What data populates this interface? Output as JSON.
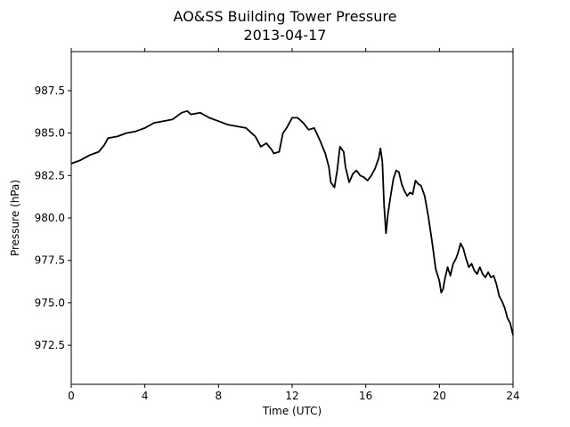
{
  "chart_data": {
    "type": "line",
    "title": "AO&SS Building Tower Pressure",
    "subtitle": "2013-04-17",
    "xlabel": "Time (UTC)",
    "ylabel": "Pressure (hPa)",
    "xlim": [
      0,
      24
    ],
    "ylim": [
      970.2,
      989.8
    ],
    "xticks": [
      0,
      4,
      8,
      12,
      16,
      20,
      24
    ],
    "yticks": [
      972.5,
      975.0,
      977.5,
      980.0,
      982.5,
      985.0,
      987.5
    ],
    "xtick_labels": [
      "0",
      "4",
      "8",
      "12",
      "16",
      "20",
      "24"
    ],
    "ytick_labels": [
      "972.5",
      "975.0",
      "977.5",
      "980.0",
      "982.5",
      "985.0",
      "987.5"
    ],
    "grid": false,
    "line_color": "#000000",
    "series": [
      {
        "x": [
          0.0,
          0.5,
          1.0,
          1.5,
          1.8,
          2.0,
          2.5,
          3.0,
          3.5,
          4.0,
          4.5,
          5.0,
          5.5,
          6.0,
          6.3,
          6.5,
          7.0,
          7.5,
          8.0,
          8.5,
          9.0,
          9.5,
          10.0,
          10.3,
          10.6,
          10.9,
          11.0,
          11.3,
          11.5,
          11.7,
          12.0,
          12.3,
          12.6,
          12.9,
          13.2,
          13.5,
          13.8,
          14.0,
          14.1,
          14.3,
          14.45,
          14.6,
          14.8,
          14.9,
          15.1,
          15.3,
          15.5,
          15.7,
          15.9,
          16.1,
          16.3,
          16.5,
          16.7,
          16.8,
          16.9,
          17.0,
          17.1,
          17.2,
          17.35,
          17.5,
          17.65,
          17.8,
          17.95,
          18.1,
          18.25,
          18.4,
          18.55,
          18.7,
          18.85,
          19.0,
          19.2,
          19.4,
          19.6,
          19.8,
          20.0,
          20.1,
          20.2,
          20.3,
          20.45,
          20.6,
          20.75,
          20.9,
          21.0,
          21.15,
          21.3,
          21.45,
          21.6,
          21.75,
          21.9,
          22.05,
          22.2,
          22.35,
          22.5,
          22.65,
          22.8,
          22.95,
          23.1,
          23.25,
          23.4,
          23.55,
          23.7,
          23.85,
          24.0
        ],
        "y": [
          983.2,
          983.4,
          983.7,
          983.9,
          984.3,
          984.7,
          984.8,
          985.0,
          985.1,
          985.3,
          985.6,
          985.7,
          985.8,
          986.2,
          986.3,
          986.1,
          986.2,
          985.9,
          985.7,
          985.5,
          985.4,
          985.3,
          984.8,
          984.2,
          984.4,
          984.0,
          983.8,
          983.9,
          985.0,
          985.3,
          985.9,
          985.9,
          985.6,
          985.2,
          985.3,
          984.6,
          983.8,
          983.0,
          982.1,
          981.8,
          982.8,
          984.2,
          983.9,
          983.0,
          982.1,
          982.6,
          982.8,
          982.5,
          982.4,
          982.2,
          982.5,
          982.9,
          983.5,
          984.1,
          983.3,
          980.7,
          979.1,
          980.2,
          981.3,
          982.3,
          982.8,
          982.7,
          982.0,
          981.6,
          981.3,
          981.5,
          981.4,
          982.2,
          982.0,
          981.9,
          981.3,
          980.1,
          978.6,
          977.0,
          976.3,
          975.6,
          975.8,
          976.4,
          977.1,
          976.6,
          977.3,
          977.6,
          977.9,
          978.5,
          978.2,
          977.6,
          977.1,
          977.3,
          976.9,
          976.7,
          977.1,
          976.7,
          976.5,
          976.8,
          976.5,
          976.6,
          976.1,
          975.4,
          975.1,
          974.7,
          974.1,
          973.8,
          973.1
        ]
      }
    ]
  }
}
